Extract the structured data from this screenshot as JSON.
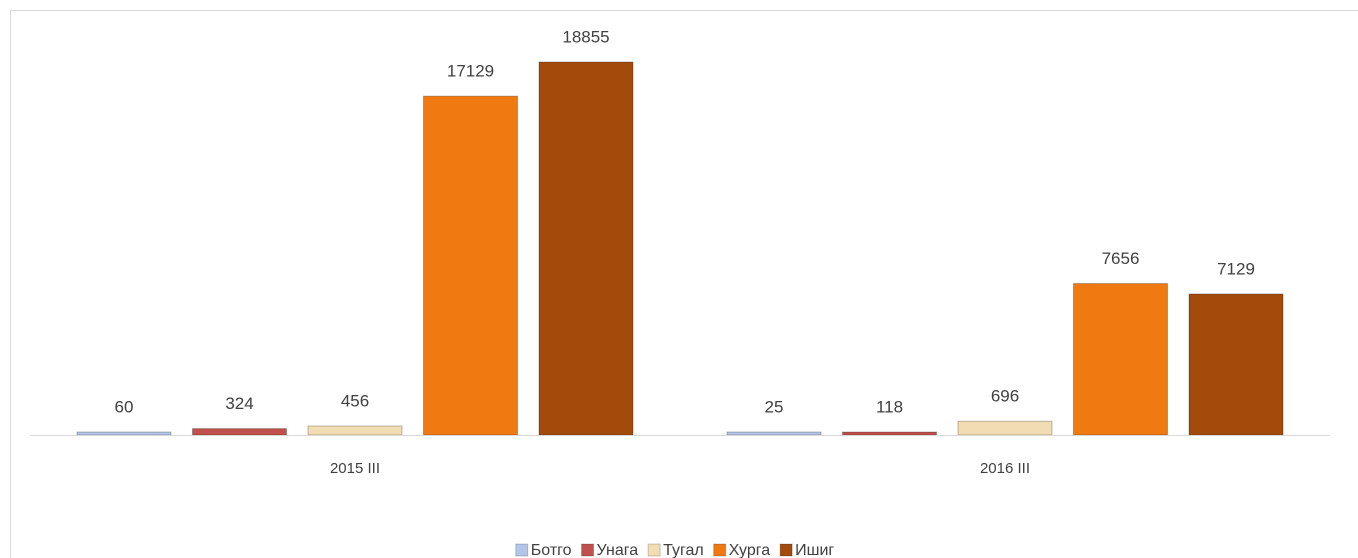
{
  "chart_data": {
    "type": "bar",
    "categories": [
      "2015 III",
      "2016 III"
    ],
    "series": [
      {
        "name": "Ботго",
        "color": "#b4c6e7",
        "values": [
          60,
          25
        ]
      },
      {
        "name": "Унага",
        "color": "#c0504d",
        "values": [
          324,
          118
        ]
      },
      {
        "name": "Тугал",
        "color": "#f2dcb3",
        "values": [
          456,
          696
        ]
      },
      {
        "name": "Хурга",
        "color": "#f07a12",
        "values": [
          17129,
          7656
        ]
      },
      {
        "name": "Ишиг",
        "color": "#a34b0b",
        "values": [
          18855,
          7129
        ]
      }
    ],
    "legend": "bottom"
  }
}
